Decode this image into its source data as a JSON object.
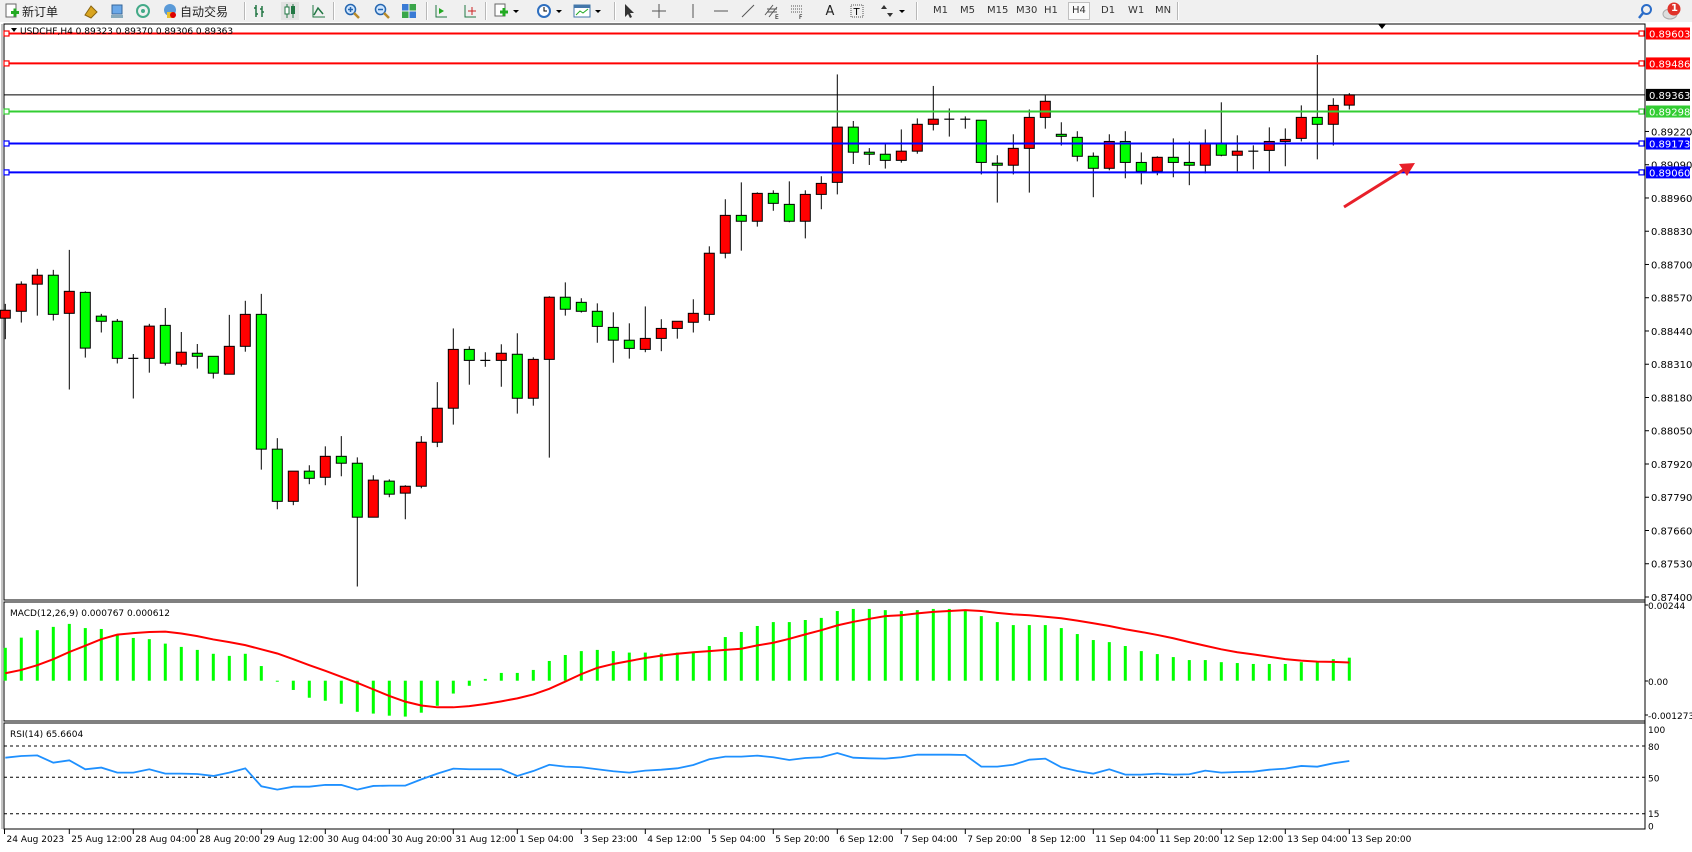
{
  "toolbar": {
    "new_order": "新订单",
    "auto_trading": "自动交易",
    "timeframes": [
      "M1",
      "M5",
      "M15",
      "M30",
      "H1",
      "H4",
      "D1",
      "W1",
      "MN"
    ],
    "active_timeframe": "H4",
    "notification_count": "1",
    "icons": [
      "new-order-icon",
      "gold-icon",
      "market-watch-icon",
      "signals-icon",
      "auto-trading-icon",
      "bar-chart-icon",
      "candlestick-icon",
      "line-chart-icon",
      "zoom-in-icon",
      "zoom-out-icon",
      "tile-windows-icon",
      "chart-shift-icon",
      "autoscroll-icon",
      "indicators-icon",
      "periods-icon",
      "templates-icon",
      "cursor-icon",
      "crosshair-icon",
      "vertical-line-icon",
      "horizontal-line-icon",
      "trendline-icon",
      "equidistant-channel-icon",
      "fibonacci-icon",
      "text-icon",
      "text-label-icon",
      "arrows-icon",
      "search-icon",
      "notification-icon"
    ]
  },
  "chart_header": "USDCHF,H4  0.89323 0.89370 0.89306 0.89363",
  "colors": {
    "bull": "#ff0000",
    "bear": "#00ff00",
    "macd_hist": "#00ff00",
    "macd_signal": "#ff0000",
    "rsi": "#1e90ff"
  },
  "chart_data": {
    "type": "candlestick",
    "symbol": "USDCHF",
    "timeframe": "H4",
    "ohlc_order": [
      "open",
      "high",
      "low",
      "close"
    ],
    "candles": [
      [
        0.8849,
        0.88546,
        0.88408,
        0.88521
      ],
      [
        0.88517,
        0.88634,
        0.88473,
        0.88623
      ],
      [
        0.88623,
        0.88683,
        0.885,
        0.88658
      ],
      [
        0.88658,
        0.88679,
        0.88481,
        0.88505
      ],
      [
        0.88509,
        0.88757,
        0.88211,
        0.88595
      ],
      [
        0.88591,
        0.88595,
        0.88336,
        0.88373
      ],
      [
        0.88498,
        0.88507,
        0.88434,
        0.88478
      ],
      [
        0.88478,
        0.88487,
        0.88313,
        0.88333
      ],
      [
        0.88333,
        0.8835,
        0.88176,
        0.88333
      ],
      [
        0.88333,
        0.88468,
        0.88277,
        0.88459
      ],
      [
        0.88462,
        0.8853,
        0.88305,
        0.88314
      ],
      [
        0.8831,
        0.88436,
        0.88301,
        0.88357
      ],
      [
        0.88353,
        0.88389,
        0.88293,
        0.88341
      ],
      [
        0.88341,
        0.88341,
        0.88254,
        0.88275
      ],
      [
        0.88271,
        0.88503,
        0.88271,
        0.8838
      ],
      [
        0.8838,
        0.88558,
        0.88359,
        0.88505
      ],
      [
        0.88505,
        0.88585,
        0.87898,
        0.87978
      ],
      [
        0.87978,
        0.88021,
        0.87743,
        0.87774
      ],
      [
        0.87774,
        0.87892,
        0.87759,
        0.87892
      ],
      [
        0.87892,
        0.87915,
        0.87841,
        0.87864
      ],
      [
        0.87868,
        0.87989,
        0.87837,
        0.8795
      ],
      [
        0.8795,
        0.88029,
        0.87872,
        0.87923
      ],
      [
        0.87923,
        0.87946,
        0.87441,
        0.87712
      ],
      [
        0.87712,
        0.87876,
        0.87712,
        0.87857
      ],
      [
        0.87853,
        0.8786,
        0.8779,
        0.87802
      ],
      [
        0.87806,
        0.87837,
        0.87704,
        0.87833
      ],
      [
        0.87833,
        0.88029,
        0.87825,
        0.88005
      ],
      [
        0.88005,
        0.8824,
        0.87986,
        0.88138
      ],
      [
        0.88138,
        0.8845,
        0.88074,
        0.88368
      ],
      [
        0.88368,
        0.8838,
        0.8823,
        0.88325
      ],
      [
        0.88325,
        0.88357,
        0.883,
        0.88325
      ],
      [
        0.88325,
        0.88388,
        0.88222,
        0.88353
      ],
      [
        0.88349,
        0.88431,
        0.88117,
        0.88177
      ],
      [
        0.88177,
        0.88337,
        0.88148,
        0.88329
      ],
      [
        0.88329,
        0.88576,
        0.87945,
        0.88572
      ],
      [
        0.88572,
        0.8863,
        0.885,
        0.88525
      ],
      [
        0.88552,
        0.88568,
        0.88512,
        0.88517
      ],
      [
        0.88517,
        0.88548,
        0.88394,
        0.88458
      ],
      [
        0.88454,
        0.88513,
        0.88316,
        0.88404
      ],
      [
        0.88404,
        0.8847,
        0.88332,
        0.88372
      ],
      [
        0.88368,
        0.88536,
        0.88357,
        0.88411
      ],
      [
        0.88411,
        0.88486,
        0.88361,
        0.8845
      ],
      [
        0.8845,
        0.88478,
        0.8841,
        0.88478
      ],
      [
        0.88474,
        0.88564,
        0.88434,
        0.88509
      ],
      [
        0.88505,
        0.88771,
        0.8848,
        0.88744
      ],
      [
        0.88744,
        0.88955,
        0.88724,
        0.88892
      ],
      [
        0.88892,
        0.89021,
        0.88754,
        0.88869
      ],
      [
        0.88869,
        0.88982,
        0.88848,
        0.88978
      ],
      [
        0.88978,
        0.8899,
        0.8891,
        0.88939
      ],
      [
        0.88935,
        0.89025,
        0.88865,
        0.88869
      ],
      [
        0.88869,
        0.8899,
        0.88802,
        0.88974
      ],
      [
        0.88974,
        0.89045,
        0.88916,
        0.89017
      ],
      [
        0.89021,
        0.89443,
        0.88974,
        0.89237
      ],
      [
        0.89237,
        0.89261,
        0.89093,
        0.89139
      ],
      [
        0.89139,
        0.89155,
        0.89089,
        0.89131
      ],
      [
        0.89131,
        0.8917,
        0.89075,
        0.89107
      ],
      [
        0.89107,
        0.89228,
        0.89098,
        0.89143
      ],
      [
        0.89143,
        0.89271,
        0.89133,
        0.89248
      ],
      [
        0.89248,
        0.89398,
        0.89224,
        0.89268
      ],
      [
        0.89268,
        0.8931,
        0.892,
        0.89268
      ],
      [
        0.89268,
        0.89279,
        0.89231,
        0.89264
      ],
      [
        0.89264,
        0.89264,
        0.89052,
        0.89099
      ],
      [
        0.89096,
        0.89127,
        0.88942,
        0.89088
      ],
      [
        0.89088,
        0.89209,
        0.89052,
        0.89154
      ],
      [
        0.89154,
        0.89306,
        0.88981,
        0.89275
      ],
      [
        0.89275,
        0.89361,
        0.89231,
        0.89338
      ],
      [
        0.89209,
        0.89256,
        0.89165,
        0.89201
      ],
      [
        0.89197,
        0.89221,
        0.89103,
        0.89123
      ],
      [
        0.89123,
        0.89138,
        0.88963,
        0.89076
      ],
      [
        0.89076,
        0.89209,
        0.89068,
        0.89181
      ],
      [
        0.89181,
        0.89221,
        0.89037,
        0.89099
      ],
      [
        0.89099,
        0.89138,
        0.89013,
        0.89064
      ],
      [
        0.89064,
        0.89123,
        0.89049,
        0.89119
      ],
      [
        0.89119,
        0.89193,
        0.89041,
        0.89099
      ],
      [
        0.89099,
        0.89181,
        0.8901,
        0.89088
      ],
      [
        0.89088,
        0.89228,
        0.89056,
        0.89174
      ],
      [
        0.89174,
        0.89334,
        0.89123,
        0.89127
      ],
      [
        0.89127,
        0.89205,
        0.89064,
        0.89143
      ],
      [
        0.89143,
        0.89166,
        0.89072,
        0.89143
      ],
      [
        0.89146,
        0.89236,
        0.89064,
        0.89181
      ],
      [
        0.89181,
        0.89232,
        0.89084,
        0.89189
      ],
      [
        0.89193,
        0.89322,
        0.89181,
        0.89275
      ],
      [
        0.89275,
        0.89519,
        0.89111,
        0.89248
      ],
      [
        0.89248,
        0.8935,
        0.89165,
        0.89322
      ],
      [
        0.89323,
        0.8937,
        0.89306,
        0.89363
      ]
    ],
    "price_ticks": [
      "0.89220",
      "0.89090",
      "0.88960",
      "0.88830",
      "0.88700",
      "0.88570",
      "0.88440",
      "0.88310",
      "0.88180",
      "0.88050",
      "0.87920",
      "0.87790",
      "0.87660",
      "0.87530",
      "0.87400"
    ],
    "ylim": [
      0.874,
      0.89603
    ],
    "horizontal_lines": [
      {
        "price": "0.89603",
        "color": "#ff0000"
      },
      {
        "price": "0.89486",
        "color": "#ff0000"
      },
      {
        "price": "0.89363",
        "color": "#000000"
      },
      {
        "price": "0.89298",
        "color": "#32cd32"
      },
      {
        "price": "0.89173",
        "color": "#0000ff"
      },
      {
        "price": "0.89060",
        "color": "#0000ff"
      }
    ],
    "time_labels": [
      "24 Aug 2023",
      "25 Aug 12:00",
      "28 Aug 04:00",
      "28 Aug 20:00",
      "29 Aug 12:00",
      "30 Aug 04:00",
      "30 Aug 20:00",
      "31 Aug 12:00",
      "1 Sep 04:00",
      "3 Sep 23:00",
      "4 Sep 12:00",
      "5 Sep 04:00",
      "5 Sep 20:00",
      "6 Sep 12:00",
      "7 Sep 04:00",
      "7 Sep 20:00",
      "8 Sep 12:00",
      "11 Sep 04:00",
      "11 Sep 20:00",
      "12 Sep 12:00",
      "13 Sep 04:00",
      "13 Sep 20:00"
    ],
    "macd": {
      "label": "MACD(12,26,9) 0.000767 0.000612",
      "axis_labels": [
        "0.00244",
        "0.00",
        "-0.001273"
      ],
      "ylim": [
        -0.001273,
        0.00244
      ],
      "histogram": [
        0.0011,
        0.00144,
        0.00169,
        0.0018,
        0.0019,
        0.00176,
        0.00173,
        0.00153,
        0.00143,
        0.00139,
        0.00124,
        0.00113,
        0.00103,
        0.0009,
        0.00083,
        0.0009,
        0.00049,
        -3e-05,
        -0.00031,
        -0.00057,
        -0.00067,
        -0.00077,
        -0.00104,
        -0.0011,
        -0.00117,
        -0.0012,
        -0.00107,
        -0.00084,
        -0.00043,
        -0.00017,
        6e-05,
        0.00026,
        0.00026,
        0.00036,
        0.00066,
        0.00086,
        0.00099,
        0.00103,
        0.00099,
        0.00094,
        0.00094,
        0.00091,
        0.00094,
        0.00096,
        0.00116,
        0.00146,
        0.00163,
        0.00183,
        0.00196,
        0.00196,
        0.00203,
        0.0021,
        0.00233,
        0.0024,
        0.0024,
        0.00236,
        0.00233,
        0.00236,
        0.0024,
        0.0024,
        0.00233,
        0.00216,
        0.00196,
        0.00186,
        0.00186,
        0.00186,
        0.00176,
        0.00156,
        0.00136,
        0.00129,
        0.00116,
        0.00099,
        0.00089,
        0.00079,
        0.00069,
        0.00069,
        0.00062,
        0.00059,
        0.00056,
        0.00056,
        0.00056,
        0.00062,
        0.00062,
        0.00072,
        0.00077
      ],
      "signal": [
        0.00025,
        0.00036,
        0.00052,
        0.00072,
        0.00096,
        0.00117,
        0.00139,
        0.00154,
        0.00159,
        0.00163,
        0.00164,
        0.00158,
        0.00149,
        0.00138,
        0.00129,
        0.00119,
        0.00105,
        0.00091,
        0.00072,
        0.00052,
        0.00033,
        0.00013,
        -7e-05,
        -0.00029,
        -0.00051,
        -0.0007,
        -0.00083,
        -0.00089,
        -0.00089,
        -0.00085,
        -0.00078,
        -0.00069,
        -0.00059,
        -0.00046,
        -0.00027,
        -3e-05,
        0.00022,
        0.00043,
        0.00056,
        0.00066,
        0.00076,
        0.00084,
        0.0009,
        0.00095,
        0.00099,
        0.00103,
        0.00107,
        0.00118,
        0.00127,
        0.0014,
        0.00155,
        0.00169,
        0.00185,
        0.00197,
        0.00207,
        0.00216,
        0.00219,
        0.00225,
        0.0023,
        0.00233,
        0.00236,
        0.00233,
        0.00227,
        0.00222,
        0.00219,
        0.00214,
        0.00209,
        0.00201,
        0.00192,
        0.00183,
        0.00172,
        0.00163,
        0.00153,
        0.00142,
        0.00129,
        0.00117,
        0.00105,
        0.00095,
        0.00088,
        0.0008,
        0.00072,
        0.00067,
        0.00064,
        0.00063,
        0.00061
      ]
    },
    "rsi": {
      "label": "RSI(14) 65.6604",
      "axis_labels": [
        "100",
        "80",
        "50",
        "15",
        "0"
      ],
      "levels": [
        80,
        50,
        15
      ],
      "ylim": [
        0,
        100
      ],
      "values": [
        68.8,
        70.4,
        71,
        64,
        66.3,
        57.7,
        59.3,
        54.5,
        54.5,
        57.7,
        53.5,
        53.5,
        53.2,
        51.3,
        54.5,
        58.6,
        41.4,
        38.2,
        41,
        41,
        42.7,
        42.7,
        38.2,
        41.7,
        42,
        42,
        48,
        53.5,
        58.3,
        57.7,
        57.7,
        57.7,
        51.3,
        56,
        62,
        60.2,
        59.6,
        57.7,
        55.8,
        54.5,
        56.4,
        57.3,
        58.6,
        61.8,
        67.3,
        69.8,
        69.8,
        70.8,
        69.2,
        66.6,
        68.5,
        69.2,
        73.3,
        68.8,
        68.2,
        67.9,
        69.2,
        71.7,
        71.7,
        71.7,
        71.4,
        60.2,
        60.2,
        62,
        66.9,
        67.9,
        59.6,
        56,
        53.5,
        57.7,
        52.6,
        52.6,
        53.5,
        52.6,
        52.9,
        56.4,
        54.5,
        55.1,
        55.4,
        57.3,
        58.3,
        60.9,
        60.2,
        63.4,
        65.66
      ]
    }
  }
}
